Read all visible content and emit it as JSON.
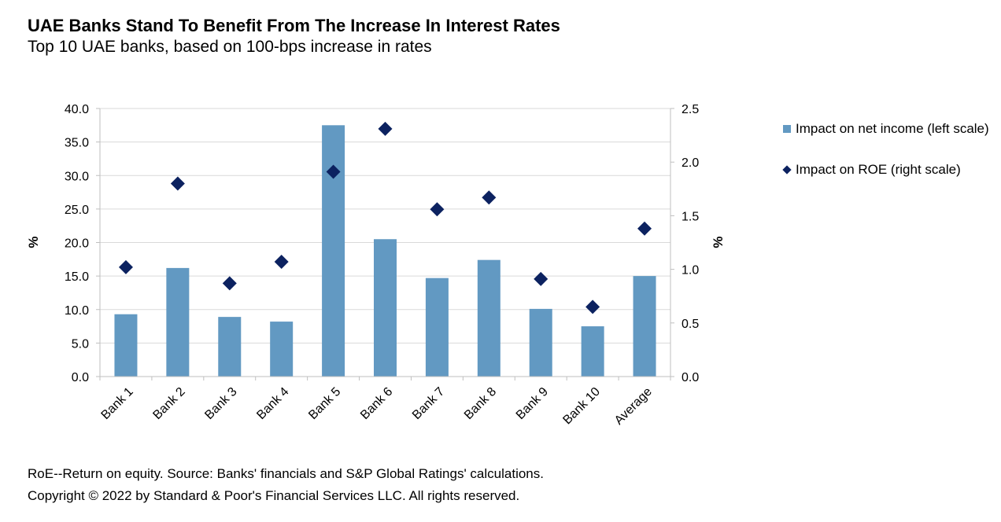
{
  "title": "UAE Banks Stand To Benefit From The Increase In Interest Rates",
  "subtitle": "Top 10 UAE banks, based on 100-bps increase in rates",
  "footer": {
    "note": "RoE--Return on equity. Source: Banks' financials and S&P Global Ratings' calculations.",
    "copyright": "Copyright © 2022 by Standard & Poor's Financial Services LLC. All rights reserved."
  },
  "colors": {
    "bar": "#6299c2",
    "diamond": "#0c2260",
    "grid": "#d9d9d9",
    "axis": "#bfbfbf"
  },
  "chart_data": {
    "type": "bar",
    "categories": [
      "Bank 1",
      "Bank 2",
      "Bank 3",
      "Bank 4",
      "Bank 5",
      "Bank 6",
      "Bank 7",
      "Bank 8",
      "Bank 9",
      "Bank 10",
      "Average"
    ],
    "series": [
      {
        "name": "Impact on net income (left scale)",
        "type": "bar",
        "axis": "left",
        "values": [
          9.3,
          16.2,
          8.9,
          8.2,
          37.5,
          20.5,
          14.7,
          17.4,
          10.1,
          7.5,
          15.0
        ]
      },
      {
        "name": "Impact on ROE (right scale)",
        "type": "scatter",
        "axis": "right",
        "values": [
          1.02,
          1.8,
          0.87,
          1.07,
          1.91,
          2.31,
          1.56,
          1.67,
          0.91,
          0.65,
          1.38
        ]
      }
    ],
    "ylabel": "%",
    "y2label": "%",
    "ylim": [
      0,
      40
    ],
    "y2lim": [
      0,
      2.5
    ],
    "yticks": [
      "0.0",
      "5.0",
      "10.0",
      "15.0",
      "20.0",
      "25.0",
      "30.0",
      "35.0",
      "40.0"
    ],
    "y2ticks": [
      "0.0",
      "0.5",
      "1.0",
      "1.5",
      "2.0",
      "2.5"
    ],
    "grid": true,
    "legend": "right"
  }
}
